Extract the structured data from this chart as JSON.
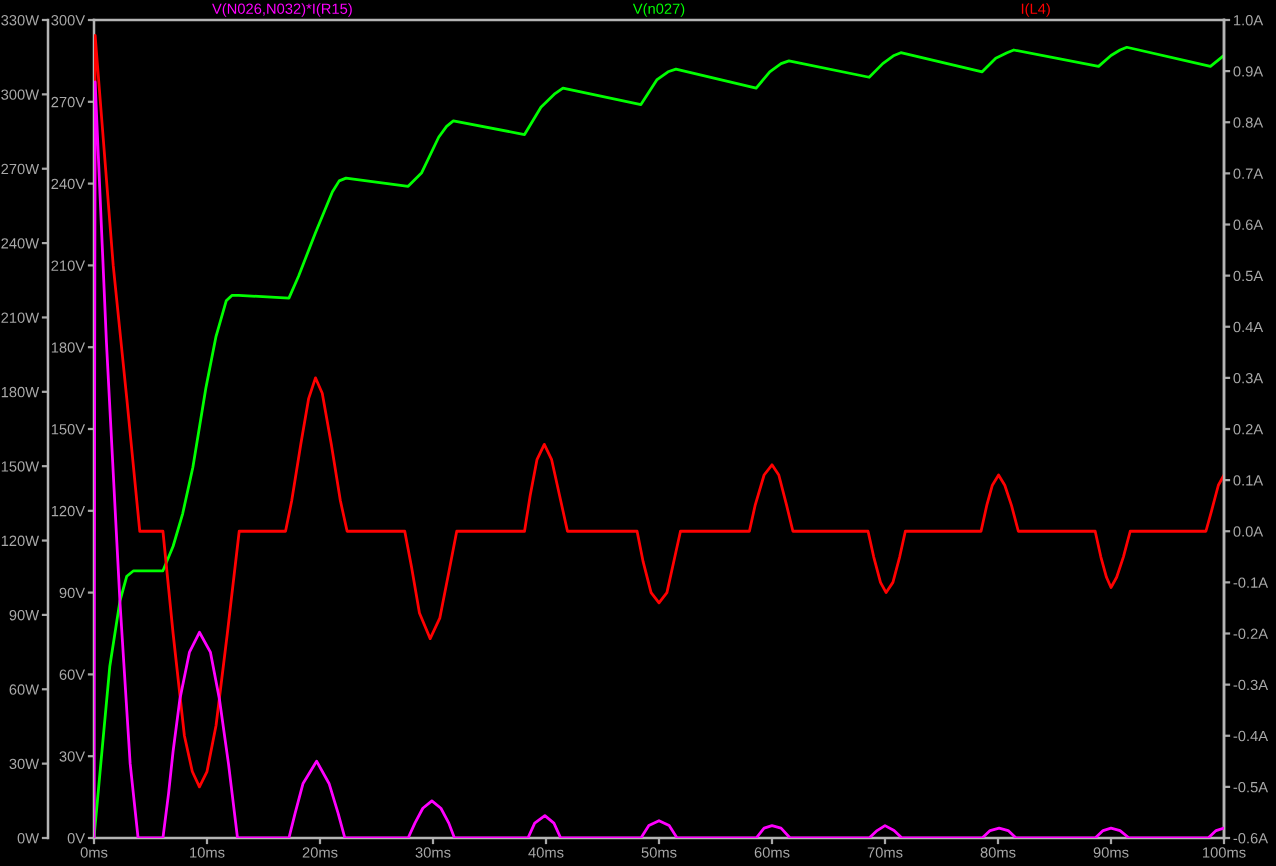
{
  "chart_data": {
    "type": "line",
    "xlim": [
      0,
      100
    ],
    "xticks": [
      {
        "value": 0,
        "label": "0ms"
      },
      {
        "value": 10,
        "label": "10ms"
      },
      {
        "value": 20,
        "label": "20ms"
      },
      {
        "value": 30,
        "label": "30ms"
      },
      {
        "value": 40,
        "label": "40ms"
      },
      {
        "value": 50,
        "label": "50ms"
      },
      {
        "value": 60,
        "label": "60ms"
      },
      {
        "value": 70,
        "label": "70ms"
      },
      {
        "value": 80,
        "label": "80ms"
      },
      {
        "value": 90,
        "label": "90ms"
      },
      {
        "value": 100,
        "label": "100ms"
      }
    ],
    "ylim": [
      0,
      300
    ],
    "yticks": [
      {
        "value": 0,
        "label": "0V"
      },
      {
        "value": 30,
        "label": "30V"
      },
      {
        "value": 60,
        "label": "60V"
      },
      {
        "value": 90,
        "label": "90V"
      },
      {
        "value": 120,
        "label": "120V"
      },
      {
        "value": 150,
        "label": "150V"
      },
      {
        "value": 180,
        "label": "180V"
      },
      {
        "value": 210,
        "label": "210V"
      },
      {
        "value": 240,
        "label": "240V"
      },
      {
        "value": 270,
        "label": "270V"
      },
      {
        "value": 300,
        "label": "300V"
      }
    ],
    "y2lim": [
      -0.6,
      1.0
    ],
    "y2ticks": [
      {
        "value": -0.6,
        "label": "-0.6A"
      },
      {
        "value": -0.5,
        "label": "-0.5A"
      },
      {
        "value": -0.4,
        "label": "-0.4A"
      },
      {
        "value": -0.3,
        "label": "-0.3A"
      },
      {
        "value": -0.2,
        "label": "-0.2A"
      },
      {
        "value": -0.1,
        "label": "-0.1A"
      },
      {
        "value": 0.0,
        "label": "0.0A"
      },
      {
        "value": 0.1,
        "label": "0.1A"
      },
      {
        "value": 0.2,
        "label": "0.2A"
      },
      {
        "value": 0.3,
        "label": "0.3A"
      },
      {
        "value": 0.4,
        "label": "0.4A"
      },
      {
        "value": 0.5,
        "label": "0.5A"
      },
      {
        "value": 0.6,
        "label": "0.6A"
      },
      {
        "value": 0.7,
        "label": "0.7A"
      },
      {
        "value": 0.8,
        "label": "0.8A"
      },
      {
        "value": 0.9,
        "label": "0.9A"
      },
      {
        "value": 1.0,
        "label": "1.0A"
      }
    ],
    "y3lim": [
      0,
      330
    ],
    "y3ticks": [
      {
        "value": 0,
        "label": "0W"
      },
      {
        "value": 30,
        "label": "30W"
      },
      {
        "value": 60,
        "label": "60W"
      },
      {
        "value": 90,
        "label": "90W"
      },
      {
        "value": 120,
        "label": "120W"
      },
      {
        "value": 150,
        "label": "150W"
      },
      {
        "value": 180,
        "label": "180W"
      },
      {
        "value": 210,
        "label": "210W"
      },
      {
        "value": 240,
        "label": "240W"
      },
      {
        "value": 270,
        "label": "270W"
      },
      {
        "value": 300,
        "label": "300W"
      },
      {
        "value": 330,
        "label": "330W"
      }
    ],
    "legend": "top",
    "series": [
      {
        "name": "V(N026,N032)*I(R15)",
        "color": "#ff00ff",
        "axis": "y3",
        "x": [
          0,
          0.1,
          1.1,
          2.3,
          3.2,
          3.9,
          6.1,
          6.6,
          7.0,
          7.6,
          8.45,
          9.33,
          10.3,
          11.1,
          11.9,
          12.7,
          17.25,
          17.8,
          18.5,
          19.7,
          20.8,
          21.6,
          22.2,
          27.8,
          28.4,
          29.1,
          29.9,
          30.7,
          31.4,
          31.9,
          38.4,
          39.0,
          39.9,
          40.7,
          41.3,
          48.4,
          49.1,
          50.0,
          50.9,
          51.6,
          58.6,
          59.3,
          60.0,
          60.8,
          61.6,
          68.6,
          69.3,
          70.0,
          70.8,
          71.5,
          78.6,
          79.3,
          80.1,
          80.9,
          81.6,
          88.6,
          89.3,
          90.0,
          90.8,
          91.6,
          98.6,
          99.3,
          100
        ],
        "values": [
          0,
          305,
          200,
          95,
          30,
          0,
          0,
          18,
          35,
          56,
          75,
          83,
          75,
          56,
          30,
          0,
          0,
          10,
          22,
          31,
          22,
          10,
          0,
          0,
          6,
          12,
          15,
          12,
          6,
          0,
          0,
          6,
          9,
          6,
          0,
          0,
          5,
          7,
          5,
          0,
          0,
          4,
          5,
          4,
          0,
          0,
          3,
          5,
          3,
          0,
          0,
          3,
          4,
          3,
          0,
          0,
          3,
          4,
          3,
          0,
          0,
          3,
          4
        ]
      },
      {
        "name": "V(n027)",
        "color": "#00ff00",
        "x": [
          0,
          0.53,
          1.4,
          2.3,
          2.9,
          3.5,
          6.1,
          7.0,
          7.85,
          8.75,
          9.9,
          10.8,
          11.7,
          12.2,
          12.8,
          17.25,
          18.1,
          19.6,
          21.1,
          21.7,
          22.3,
          27.8,
          29.0,
          30.5,
          31.2,
          31.8,
          38.1,
          39.55,
          40.8,
          41.5,
          48.4,
          49.8,
          50.8,
          51.5,
          58.6,
          59.8,
          60.8,
          61.5,
          68.6,
          69.8,
          70.8,
          71.4,
          78.6,
          79.8,
          80.8,
          81.4,
          88.9,
          90.0,
          90.8,
          91.4,
          98.8,
          100
        ],
        "values": [
          0,
          24,
          63,
          87,
          96,
          98,
          98,
          107,
          119,
          136,
          165,
          184,
          197,
          199,
          199,
          198,
          206,
          222,
          237,
          241,
          242,
          239,
          244,
          257,
          261,
          263,
          258,
          268,
          273,
          275,
          269,
          278,
          281,
          282,
          275,
          281,
          284,
          285,
          279,
          284,
          287,
          288,
          281,
          286,
          288,
          289,
          283,
          287,
          289,
          290,
          283,
          287
        ]
      },
      {
        "name": "I(L4)",
        "color": "#ff0000",
        "axis": "y2",
        "x": [
          0,
          0.1,
          1.7,
          2.9,
          4.05,
          6.1,
          7.0,
          8.0,
          8.7,
          9.33,
          10.0,
          10.8,
          11.8,
          12.85,
          16.95,
          17.5,
          18.3,
          19.0,
          19.6,
          20.2,
          21.0,
          21.8,
          22.4,
          27.5,
          28.1,
          28.8,
          29.75,
          30.6,
          31.4,
          32.1,
          38.1,
          38.6,
          39.2,
          39.85,
          40.5,
          41.2,
          41.9,
          48.06,
          48.6,
          49.3,
          50.0,
          50.7,
          51.3,
          51.9,
          58.0,
          58.5,
          59.3,
          60.0,
          60.6,
          61.3,
          61.85,
          68.5,
          69.0,
          69.6,
          70.1,
          70.7,
          71.3,
          71.8,
          78.5,
          79.0,
          79.5,
          80.05,
          80.6,
          81.2,
          81.8,
          88.6,
          89.1,
          89.6,
          90.0,
          90.5,
          91.1,
          91.7,
          98.4,
          98.9,
          99.5,
          100
        ],
        "values": [
          0,
          0.97,
          0.52,
          0.26,
          0,
          0,
          -0.2,
          -0.4,
          -0.47,
          -0.5,
          -0.47,
          -0.38,
          -0.2,
          0,
          0,
          0.06,
          0.17,
          0.26,
          0.3,
          0.27,
          0.17,
          0.06,
          0,
          0,
          -0.07,
          -0.16,
          -0.21,
          -0.17,
          -0.08,
          0,
          0,
          0.07,
          0.14,
          0.17,
          0.14,
          0.07,
          0,
          0,
          -0.06,
          -0.12,
          -0.14,
          -0.12,
          -0.06,
          0,
          0,
          0.05,
          0.11,
          0.13,
          0.11,
          0.05,
          0,
          0,
          -0.05,
          -0.1,
          -0.12,
          -0.1,
          -0.05,
          0,
          0,
          0.05,
          0.09,
          0.11,
          0.09,
          0.05,
          0,
          0,
          -0.05,
          -0.09,
          -0.11,
          -0.09,
          -0.05,
          0,
          0,
          0.04,
          0.09,
          0.11
        ]
      }
    ]
  }
}
